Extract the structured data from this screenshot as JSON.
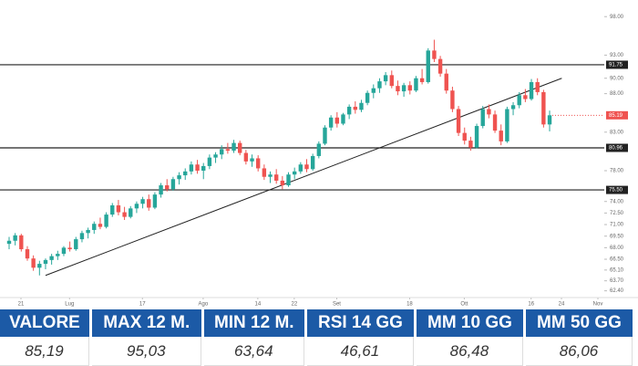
{
  "chart_data": {
    "type": "candlestick",
    "ylim": [
      62,
      98.5
    ],
    "xlim": [
      -1.5,
      98
    ],
    "yticks": [
      {
        "value": 62.4,
        "label": "62.40"
      },
      {
        "value": 63.7,
        "label": "63.70"
      },
      {
        "value": 65.1,
        "label": "65.10"
      },
      {
        "value": 66.5,
        "label": "66.50"
      },
      {
        "value": 68,
        "label": "68.00"
      },
      {
        "value": 69.5,
        "label": "69.50"
      },
      {
        "value": 71,
        "label": "71.00"
      },
      {
        "value": 72.5,
        "label": "72.50"
      },
      {
        "value": 74,
        "label": "74.00"
      },
      {
        "value": 78,
        "label": "78.00"
      },
      {
        "value": 83,
        "label": "83.00"
      },
      {
        "value": 88,
        "label": "88.00"
      },
      {
        "value": 90,
        "label": "90.00"
      },
      {
        "value": 93,
        "label": "93.00"
      },
      {
        "value": 98,
        "label": "98.00"
      }
    ],
    "xticks": [
      {
        "value": 0,
        "label": "21"
      },
      {
        "value": 8,
        "label": "Lug"
      },
      {
        "value": 20,
        "label": "17"
      },
      {
        "value": 30,
        "label": "Ago"
      },
      {
        "value": 39,
        "label": "14"
      },
      {
        "value": 45,
        "label": "22"
      },
      {
        "value": 52,
        "label": "Set"
      },
      {
        "value": 64,
        "label": "18"
      },
      {
        "value": 73,
        "label": "Ott"
      },
      {
        "value": 84,
        "label": "16"
      },
      {
        "value": 89,
        "label": "24"
      },
      {
        "value": 95,
        "label": "Nov"
      }
    ],
    "up_color": "#26a69a",
    "down_color": "#ef5350",
    "levels": [
      91.75,
      80.96,
      {
        "value": 75.5,
        "label": "75.50"
      }
    ],
    "trendline": {
      "x": [
        6,
        91
      ],
      "y": [
        64.4,
        90.0
      ]
    },
    "candles": [
      [
        68.5,
        69.4,
        67.8,
        68.9
      ],
      [
        68.9,
        69.9,
        68.3,
        69.6
      ],
      [
        69.6,
        69.8,
        67.5,
        67.8
      ],
      [
        67.8,
        68.2,
        66.3,
        66.6
      ],
      [
        66.6,
        67.0,
        65.0,
        65.4
      ],
      [
        65.4,
        66.3,
        64.4,
        65.9
      ],
      [
        65.9,
        66.6,
        65.2,
        66.4
      ],
      [
        66.4,
        67.2,
        65.8,
        66.9
      ],
      [
        66.9,
        67.6,
        66.4,
        67.2
      ],
      [
        67.2,
        68.2,
        66.9,
        68.0
      ],
      [
        68.0,
        68.8,
        67.5,
        67.8
      ],
      [
        67.8,
        69.4,
        67.6,
        69.1
      ],
      [
        69.1,
        70.2,
        68.7,
        69.9
      ],
      [
        69.9,
        70.6,
        69.2,
        70.3
      ],
      [
        70.3,
        71.4,
        69.8,
        71.1
      ],
      [
        71.1,
        71.9,
        70.4,
        70.7
      ],
      [
        70.7,
        72.6,
        70.5,
        72.3
      ],
      [
        72.3,
        73.8,
        72.0,
        73.5
      ],
      [
        73.5,
        74.2,
        72.2,
        72.6
      ],
      [
        72.6,
        73.3,
        71.6,
        72.0
      ],
      [
        72.0,
        73.4,
        71.8,
        73.1
      ],
      [
        73.1,
        74.0,
        72.5,
        73.7
      ],
      [
        73.7,
        74.6,
        73.1,
        74.3
      ],
      [
        74.3,
        74.9,
        72.8,
        73.2
      ],
      [
        73.2,
        75.2,
        73.0,
        74.9
      ],
      [
        74.9,
        76.4,
        74.5,
        76.1
      ],
      [
        76.1,
        76.9,
        75.3,
        75.6
      ],
      [
        75.6,
        77.2,
        75.4,
        76.9
      ],
      [
        76.9,
        77.8,
        76.2,
        77.4
      ],
      [
        77.4,
        78.3,
        76.8,
        77.9
      ],
      [
        77.9,
        79.2,
        77.5,
        78.8
      ],
      [
        78.8,
        79.4,
        77.6,
        78.0
      ],
      [
        78.0,
        79.0,
        76.9,
        78.6
      ],
      [
        78.6,
        80.1,
        78.2,
        79.7
      ],
      [
        79.7,
        80.4,
        79.0,
        80.1
      ],
      [
        80.1,
        81.3,
        79.5,
        80.8
      ],
      [
        80.8,
        81.6,
        80.2,
        80.6
      ],
      [
        80.6,
        82.0,
        80.3,
        81.6
      ],
      [
        81.6,
        81.9,
        80.0,
        80.3
      ],
      [
        80.3,
        80.7,
        78.8,
        79.2
      ],
      [
        79.2,
        80.1,
        78.5,
        79.6
      ],
      [
        79.6,
        80.0,
        77.9,
        78.3
      ],
      [
        78.3,
        78.8,
        76.8,
        77.2
      ],
      [
        77.2,
        77.9,
        76.4,
        77.5
      ],
      [
        77.5,
        78.2,
        76.3,
        76.7
      ],
      [
        76.7,
        77.3,
        75.6,
        76.1
      ],
      [
        76.1,
        77.8,
        75.9,
        77.5
      ],
      [
        77.5,
        78.4,
        76.9,
        77.9
      ],
      [
        77.9,
        79.1,
        77.6,
        78.8
      ],
      [
        78.8,
        79.5,
        77.8,
        78.2
      ],
      [
        78.2,
        80.2,
        78.0,
        79.9
      ],
      [
        79.9,
        81.8,
        79.6,
        81.5
      ],
      [
        81.5,
        83.9,
        81.3,
        83.6
      ],
      [
        83.6,
        85.2,
        83.2,
        84.9
      ],
      [
        84.9,
        85.6,
        83.6,
        84.1
      ],
      [
        84.1,
        85.5,
        83.9,
        85.3
      ],
      [
        85.3,
        86.6,
        84.7,
        86.3
      ],
      [
        86.3,
        87.0,
        85.4,
        85.9
      ],
      [
        85.9,
        87.2,
        85.6,
        86.8
      ],
      [
        86.8,
        88.4,
        86.5,
        88.1
      ],
      [
        88.1,
        89.2,
        87.4,
        88.7
      ],
      [
        88.7,
        90.0,
        88.1,
        89.6
      ],
      [
        89.6,
        90.8,
        89.1,
        90.4
      ],
      [
        90.4,
        91.0,
        88.7,
        89.0
      ],
      [
        89.0,
        89.7,
        87.8,
        88.3
      ],
      [
        88.3,
        89.4,
        87.6,
        89.1
      ],
      [
        89.1,
        89.6,
        87.9,
        88.4
      ],
      [
        88.4,
        90.3,
        88.2,
        90.0
      ],
      [
        90.0,
        91.2,
        89.2,
        89.5
      ],
      [
        89.5,
        93.9,
        89.3,
        93.6
      ],
      [
        93.6,
        95.0,
        92.1,
        92.5
      ],
      [
        92.5,
        92.9,
        90.2,
        90.6
      ],
      [
        90.6,
        91.2,
        88.0,
        88.4
      ],
      [
        88.4,
        88.9,
        85.6,
        86.0
      ],
      [
        86.0,
        86.4,
        82.5,
        82.9
      ],
      [
        82.9,
        83.6,
        81.4,
        81.9
      ],
      [
        81.9,
        82.4,
        80.6,
        81.0
      ],
      [
        81.0,
        84.1,
        80.9,
        83.8
      ],
      [
        83.8,
        86.4,
        83.5,
        86.0
      ],
      [
        86.0,
        86.6,
        84.8,
        85.3
      ],
      [
        85.3,
        85.8,
        82.9,
        83.2
      ],
      [
        83.2,
        84.0,
        81.3,
        81.8
      ],
      [
        81.8,
        86.3,
        81.6,
        86.0
      ],
      [
        86.0,
        86.9,
        85.2,
        86.5
      ],
      [
        86.5,
        88.2,
        86.1,
        87.8
      ],
      [
        87.8,
        88.6,
        86.9,
        87.3
      ],
      [
        87.3,
        89.9,
        87.1,
        89.5
      ],
      [
        89.5,
        90.0,
        87.8,
        88.2
      ],
      [
        88.2,
        88.5,
        83.6,
        84.0
      ],
      [
        84.0,
        85.8,
        83.1,
        85.19
      ]
    ]
  },
  "table": {
    "headers": [
      "VALORE",
      "MAX 12 M.",
      "MIN 12 M.",
      "RSI 14 GG",
      "MM 10 GG",
      "MM 50 GG"
    ],
    "values": [
      "85,19",
      "95,03",
      "63,64",
      "46,61",
      "86,48",
      "86,06"
    ]
  }
}
